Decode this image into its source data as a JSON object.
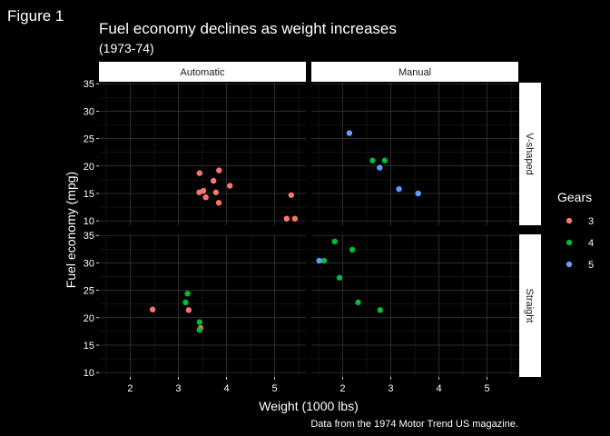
{
  "figure_label": "Figure 1",
  "chart_data": {
    "type": "scatter",
    "title": "Fuel economy declines as weight increases",
    "subtitle": "(1973-74)",
    "xlabel": "Weight (1000 lbs)",
    "ylabel": "Fuel economy (mpg)",
    "caption": "Data from the 1974 Motor Trend US magazine.",
    "xlim": [
      1.35,
      5.65
    ],
    "ylim": [
      9.2,
      35.2
    ],
    "x_ticks": [
      2,
      3,
      4,
      5
    ],
    "y_ticks": [
      10,
      15,
      20,
      25,
      30,
      35
    ],
    "grid": true,
    "legend": {
      "title": "Gears",
      "position": "right",
      "items": [
        {
          "label": "3",
          "color": "#f8766d"
        },
        {
          "label": "4",
          "color": "#00ba38"
        },
        {
          "label": "5",
          "color": "#619cff"
        }
      ]
    },
    "facet_cols": [
      "Automatic",
      "Manual"
    ],
    "facet_rows": [
      "V-shaped",
      "Straight"
    ],
    "panels": [
      {
        "col": "Automatic",
        "row": "V-shaped",
        "points": [
          {
            "x": 3.44,
            "y": 18.7,
            "gear": "3"
          },
          {
            "x": 3.57,
            "y": 14.3,
            "gear": "3"
          },
          {
            "x": 4.07,
            "y": 16.4,
            "gear": "3"
          },
          {
            "x": 3.73,
            "y": 17.3,
            "gear": "3"
          },
          {
            "x": 3.78,
            "y": 15.2,
            "gear": "3"
          },
          {
            "x": 5.25,
            "y": 10.4,
            "gear": "3"
          },
          {
            "x": 5.42,
            "y": 10.4,
            "gear": "3"
          },
          {
            "x": 5.345,
            "y": 14.7,
            "gear": "3"
          },
          {
            "x": 3.52,
            "y": 15.5,
            "gear": "3"
          },
          {
            "x": 3.435,
            "y": 15.2,
            "gear": "3"
          },
          {
            "x": 3.84,
            "y": 13.3,
            "gear": "3"
          },
          {
            "x": 3.845,
            "y": 19.2,
            "gear": "3"
          }
        ]
      },
      {
        "col": "Manual",
        "row": "V-shaped",
        "points": [
          {
            "x": 2.62,
            "y": 21.0,
            "gear": "4"
          },
          {
            "x": 2.875,
            "y": 21.0,
            "gear": "4"
          },
          {
            "x": 2.14,
            "y": 26.0,
            "gear": "5"
          },
          {
            "x": 3.17,
            "y": 15.8,
            "gear": "5"
          },
          {
            "x": 2.77,
            "y": 19.7,
            "gear": "5"
          },
          {
            "x": 3.57,
            "y": 15.0,
            "gear": "5"
          }
        ]
      },
      {
        "col": "Automatic",
        "row": "Straight",
        "points": [
          {
            "x": 3.215,
            "y": 21.4,
            "gear": "3"
          },
          {
            "x": 3.46,
            "y": 18.1,
            "gear": "3"
          },
          {
            "x": 2.465,
            "y": 21.5,
            "gear": "3"
          },
          {
            "x": 3.19,
            "y": 24.4,
            "gear": "4"
          },
          {
            "x": 3.15,
            "y": 22.8,
            "gear": "4"
          },
          {
            "x": 3.44,
            "y": 19.2,
            "gear": "4"
          },
          {
            "x": 3.44,
            "y": 17.8,
            "gear": "4"
          }
        ]
      },
      {
        "col": "Manual",
        "row": "Straight",
        "points": [
          {
            "x": 2.32,
            "y": 22.8,
            "gear": "4"
          },
          {
            "x": 2.2,
            "y": 32.4,
            "gear": "4"
          },
          {
            "x": 1.615,
            "y": 30.4,
            "gear": "4"
          },
          {
            "x": 1.835,
            "y": 33.9,
            "gear": "4"
          },
          {
            "x": 1.935,
            "y": 27.3,
            "gear": "4"
          },
          {
            "x": 2.78,
            "y": 21.4,
            "gear": "4"
          },
          {
            "x": 1.513,
            "y": 30.4,
            "gear": "5"
          }
        ]
      }
    ]
  }
}
